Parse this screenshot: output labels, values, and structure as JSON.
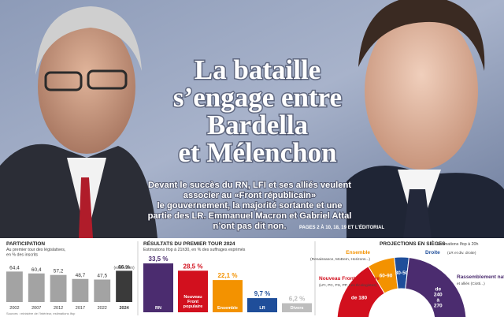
{
  "article": {
    "headline": [
      "La bataille",
      "s’engage entre",
      "Bardella",
      "et Mélenchon"
    ],
    "deck": [
      "Devant le succès du RN, LFI et ses alliés veulent",
      "associer au «Front républicain»",
      "le gouvernement, la majorité sortante et une",
      "partie des LR. Emmanuel Macron et Gabriel Attal",
      "n’ont pas dit non."
    ],
    "pages": "PAGES 2 À 10, 18, 19 ET L’ÉDITORIAL"
  },
  "chart_data": [
    {
      "type": "bar",
      "title": "PARTICIPATION",
      "subtitle": [
        "Au premier tour des législatives,",
        "en % des inscrits"
      ],
      "categories": [
        "2002",
        "2007",
        "2012",
        "2017",
        "2022",
        "2024"
      ],
      "values": [
        64.4,
        60.4,
        57.2,
        48.7,
        47.5,
        66
      ],
      "value_labels": [
        "64,4",
        "60,4",
        "57,2",
        "48,7",
        "47,5",
        "66 %"
      ],
      "annotation": "(estimation)",
      "colors": [
        "#a3a3a3",
        "#a3a3a3",
        "#a3a3a3",
        "#a3a3a3",
        "#a3a3a3",
        "#3a3a3a"
      ],
      "source": "Sources : ministère de l’Intérieur, estimations Ifop"
    },
    {
      "type": "bar",
      "title": "RÉSULTATS DU PREMIER TOUR 2024",
      "subtitle": [
        "Estimations Ifop à 21h30, en % des suffrages exprimés"
      ],
      "categories": [
        "RN",
        "Nouveau Front populaire",
        "Ensemble",
        "LR",
        "Divers"
      ],
      "values": [
        33.5,
        28.5,
        22.1,
        9.7,
        6.2
      ],
      "value_labels": [
        "33,5 %",
        "28,5 %",
        "22,1 %",
        "9,7 %",
        "6,2 %"
      ],
      "colors": [
        "#4b2c6f",
        "#d2101e",
        "#f39200",
        "#1f4e9a",
        "#bdbdbd"
      ]
    },
    {
      "type": "donut",
      "title": "PROJECTIONS EN SIÈGES",
      "subtitle": [
        "Estimations Ifop à 20h"
      ],
      "categories": [
        "Nouveau Front populaire",
        "Ensemble",
        "Droite",
        "Rassemblement national"
      ],
      "details": [
        "(LFI, PC, PS, PP, Les Écologistes)",
        "(Renaissance, MoDem, Horizons...)",
        "(LR et div. droite)",
        "et alliés (Ciotti...)"
      ],
      "low": [
        180,
        60,
        30,
        240
      ],
      "high": [
        null,
        90,
        50,
        270
      ],
      "value_labels": [
        "de 180",
        "60-90",
        "30-50",
        "de 240 à 270"
      ],
      "colors": [
        "#d2101e",
        "#f39200",
        "#1f4e9a",
        "#4b2c6f"
      ]
    }
  ]
}
